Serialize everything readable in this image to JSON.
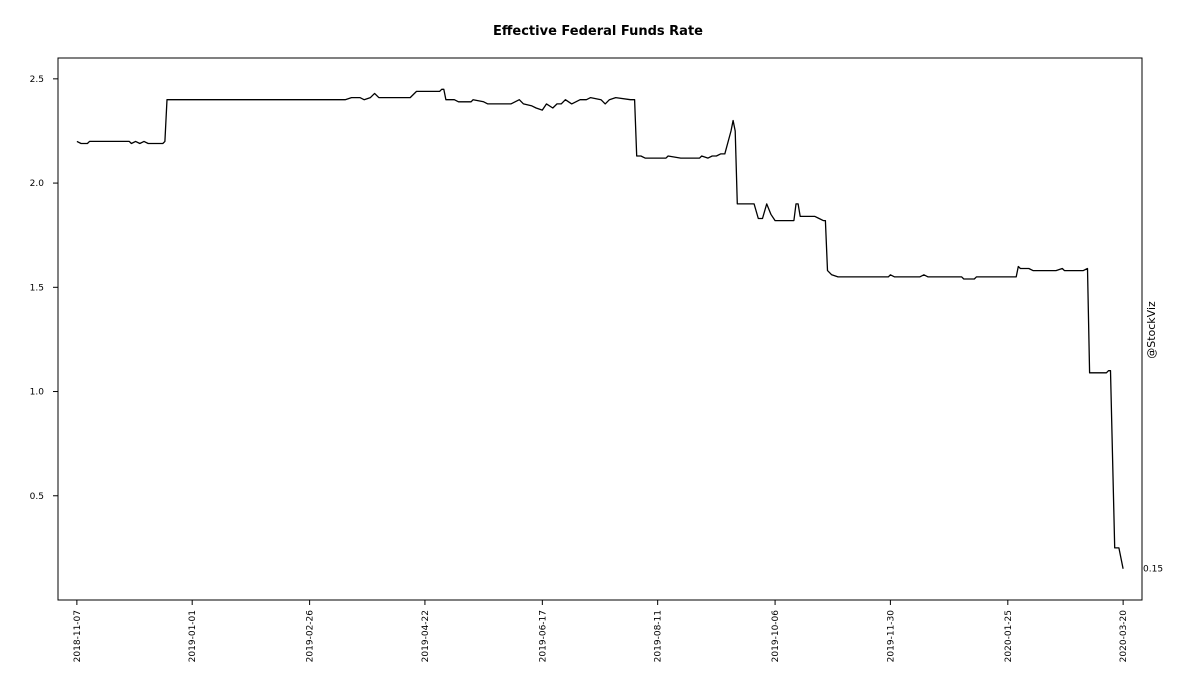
{
  "chart_data": {
    "type": "line",
    "title": "Effective Federal Funds Rate",
    "xlabel": "",
    "ylabel": "",
    "x_tick_labels": [
      "2018-11-07",
      "2019-01-01",
      "2019-02-26",
      "2019-04-22",
      "2019-06-17",
      "2019-08-11",
      "2019-10-06",
      "2019-11-30",
      "2020-01-25",
      "2020-03-20"
    ],
    "y_tick_labels": [
      "0.5",
      "1.0",
      "1.5",
      "2.0",
      "2.5"
    ],
    "ylim": [
      0.0,
      2.6
    ],
    "xlim": [
      "2018-10-29",
      "2020-03-29"
    ],
    "grid": false,
    "last_value_label": "0.15",
    "series": [
      {
        "color": "#000000",
        "points": [
          [
            "2018-11-07",
            2.2
          ],
          [
            "2018-11-09",
            2.19
          ],
          [
            "2018-11-12",
            2.19
          ],
          [
            "2018-11-13",
            2.2
          ],
          [
            "2018-12-02",
            2.2
          ],
          [
            "2018-12-03",
            2.19
          ],
          [
            "2018-12-05",
            2.2
          ],
          [
            "2018-12-07",
            2.19
          ],
          [
            "2018-12-09",
            2.2
          ],
          [
            "2018-12-11",
            2.19
          ],
          [
            "2018-12-18",
            2.19
          ],
          [
            "2018-12-19",
            2.2
          ],
          [
            "2018-12-20",
            2.4
          ],
          [
            "2019-01-02",
            2.4
          ],
          [
            "2019-03-15",
            2.4
          ],
          [
            "2019-03-18",
            2.41
          ],
          [
            "2019-03-22",
            2.41
          ],
          [
            "2019-03-24",
            2.4
          ],
          [
            "2019-03-27",
            2.41
          ],
          [
            "2019-03-29",
            2.43
          ],
          [
            "2019-03-31",
            2.41
          ],
          [
            "2019-04-15",
            2.41
          ],
          [
            "2019-04-18",
            2.44
          ],
          [
            "2019-04-29",
            2.44
          ],
          [
            "2019-04-30",
            2.45
          ],
          [
            "2019-05-01",
            2.45
          ],
          [
            "2019-05-02",
            2.4
          ],
          [
            "2019-05-06",
            2.4
          ],
          [
            "2019-05-08",
            2.39
          ],
          [
            "2019-05-14",
            2.39
          ],
          [
            "2019-05-15",
            2.4
          ],
          [
            "2019-05-20",
            2.39
          ],
          [
            "2019-05-22",
            2.38
          ],
          [
            "2019-06-02",
            2.38
          ],
          [
            "2019-06-04",
            2.39
          ],
          [
            "2019-06-06",
            2.4
          ],
          [
            "2019-06-08",
            2.38
          ],
          [
            "2019-06-12",
            2.37
          ],
          [
            "2019-06-14",
            2.36
          ],
          [
            "2019-06-17",
            2.35
          ],
          [
            "2019-06-19",
            2.38
          ],
          [
            "2019-06-22",
            2.36
          ],
          [
            "2019-06-24",
            2.38
          ],
          [
            "2019-06-26",
            2.38
          ],
          [
            "2019-06-28",
            2.4
          ],
          [
            "2019-07-01",
            2.38
          ],
          [
            "2019-07-05",
            2.4
          ],
          [
            "2019-07-08",
            2.4
          ],
          [
            "2019-07-10",
            2.41
          ],
          [
            "2019-07-15",
            2.4
          ],
          [
            "2019-07-17",
            2.38
          ],
          [
            "2019-07-19",
            2.4
          ],
          [
            "2019-07-22",
            2.41
          ],
          [
            "2019-07-29",
            2.4
          ],
          [
            "2019-07-31",
            2.4
          ],
          [
            "2019-08-01",
            2.13
          ],
          [
            "2019-08-03",
            2.13
          ],
          [
            "2019-08-05",
            2.12
          ],
          [
            "2019-08-15",
            2.12
          ],
          [
            "2019-08-16",
            2.13
          ],
          [
            "2019-08-22",
            2.12
          ],
          [
            "2019-08-31",
            2.12
          ],
          [
            "2019-09-01",
            2.13
          ],
          [
            "2019-09-04",
            2.12
          ],
          [
            "2019-09-06",
            2.13
          ],
          [
            "2019-09-08",
            2.13
          ],
          [
            "2019-09-10",
            2.14
          ],
          [
            "2019-09-12",
            2.14
          ],
          [
            "2019-09-15",
            2.25
          ],
          [
            "2019-09-16",
            2.3
          ],
          [
            "2019-09-17",
            2.25
          ],
          [
            "2019-09-18",
            1.9
          ],
          [
            "2019-09-26",
            1.9
          ],
          [
            "2019-09-28",
            1.83
          ],
          [
            "2019-09-30",
            1.83
          ],
          [
            "2019-10-02",
            1.9
          ],
          [
            "2019-10-04",
            1.85
          ],
          [
            "2019-10-06",
            1.82
          ],
          [
            "2019-10-15",
            1.82
          ],
          [
            "2019-10-16",
            1.9
          ],
          [
            "2019-10-17",
            1.9
          ],
          [
            "2019-10-18",
            1.84
          ],
          [
            "2019-10-25",
            1.84
          ],
          [
            "2019-10-27",
            1.83
          ],
          [
            "2019-10-29",
            1.82
          ],
          [
            "2019-10-30",
            1.82
          ],
          [
            "2019-10-31",
            1.58
          ],
          [
            "2019-11-02",
            1.56
          ],
          [
            "2019-11-05",
            1.55
          ],
          [
            "2019-11-29",
            1.55
          ],
          [
            "2019-11-30",
            1.56
          ],
          [
            "2019-12-02",
            1.55
          ],
          [
            "2019-12-14",
            1.55
          ],
          [
            "2019-12-16",
            1.56
          ],
          [
            "2019-12-18",
            1.55
          ],
          [
            "2020-01-03",
            1.55
          ],
          [
            "2020-01-04",
            1.54
          ],
          [
            "2020-01-09",
            1.54
          ],
          [
            "2020-01-10",
            1.55
          ],
          [
            "2020-01-29",
            1.55
          ],
          [
            "2020-01-30",
            1.6
          ],
          [
            "2020-01-31",
            1.59
          ],
          [
            "2020-02-04",
            1.59
          ],
          [
            "2020-02-06",
            1.58
          ],
          [
            "2020-02-17",
            1.58
          ],
          [
            "2020-02-20",
            1.59
          ],
          [
            "2020-02-21",
            1.58
          ],
          [
            "2020-03-01",
            1.58
          ],
          [
            "2020-03-03",
            1.59
          ],
          [
            "2020-03-04",
            1.09
          ],
          [
            "2020-03-12",
            1.09
          ],
          [
            "2020-03-13",
            1.1
          ],
          [
            "2020-03-14",
            1.1
          ],
          [
            "2020-03-16",
            0.25
          ],
          [
            "2020-03-18",
            0.25
          ],
          [
            "2020-03-20",
            0.15
          ]
        ]
      }
    ],
    "watermark": "@StockViz"
  }
}
